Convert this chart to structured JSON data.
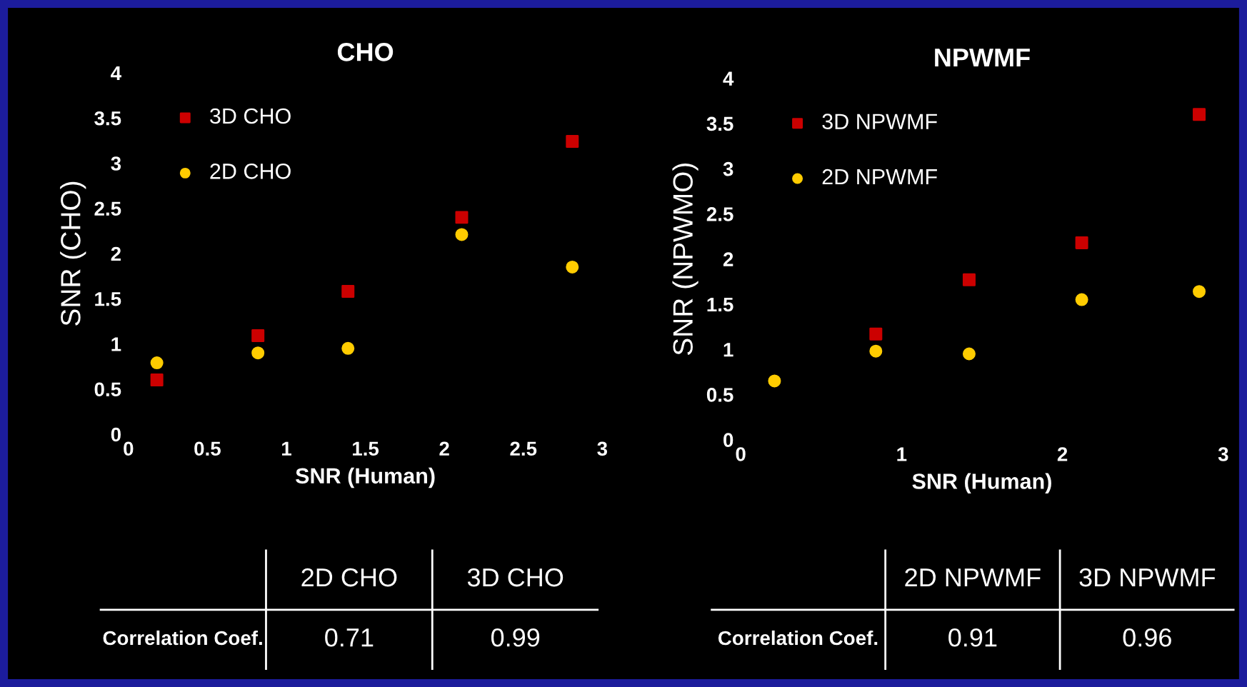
{
  "chart_data": [
    {
      "type": "scatter",
      "title": "CHO",
      "xlabel": "SNR (Human)",
      "ylabel": "SNR (CHO)",
      "xlim": [
        0,
        3
      ],
      "xticks": [
        0,
        0.5,
        1,
        1.5,
        2,
        2.5,
        3
      ],
      "ylim": [
        0,
        4
      ],
      "yticks": [
        0,
        0.5,
        1,
        1.5,
        2,
        2.5,
        3,
        3.5,
        4
      ],
      "legend": "top left",
      "grid": false,
      "series": [
        {
          "name": "3D CHO",
          "color": "#cc0000",
          "marker": "square",
          "x": [
            0.18,
            0.82,
            1.39,
            2.11,
            2.81
          ],
          "values": [
            0.6,
            1.09,
            1.58,
            2.4,
            3.24
          ]
        },
        {
          "name": "2D CHO",
          "color": "#ffcc00",
          "marker": "circle",
          "x": [
            0.18,
            0.82,
            1.39,
            2.11,
            2.81
          ],
          "values": [
            0.79,
            0.9,
            0.95,
            2.21,
            1.85
          ]
        }
      ],
      "annotations": [
        "2D CHO",
        "3D CHO",
        "Correlation Coef.",
        "0.71",
        "0.99"
      ]
    },
    {
      "type": "scatter",
      "title": "NPWMF",
      "xlabel": "SNR (Human)",
      "ylabel": "SNR (NPWMO)",
      "xlim": [
        0,
        3
      ],
      "xticks": [
        0,
        1,
        2,
        3
      ],
      "ylim": [
        0,
        4
      ],
      "yticks": [
        0,
        0.5,
        1,
        1.5,
        2,
        2.5,
        3,
        3.5,
        4
      ],
      "legend": "top left",
      "grid": false,
      "series": [
        {
          "name": "3D NPWMF",
          "color": "#cc0000",
          "marker": "square",
          "x": [
            null,
            0.84,
            1.42,
            2.12,
            2.85
          ],
          "values": [
            null,
            1.17,
            1.77,
            2.18,
            3.6
          ]
        },
        {
          "name": "2D NPWMF",
          "color": "#ffcc00",
          "marker": "circle",
          "x": [
            0.21,
            0.84,
            1.42,
            2.12,
            2.85
          ],
          "values": [
            0.65,
            0.98,
            0.95,
            1.55,
            1.64
          ]
        }
      ],
      "annotations": [
        "2D NPWMF",
        "3D NPWMF",
        "Correlation Coef.",
        "0.91",
        "0.96"
      ]
    }
  ]
}
